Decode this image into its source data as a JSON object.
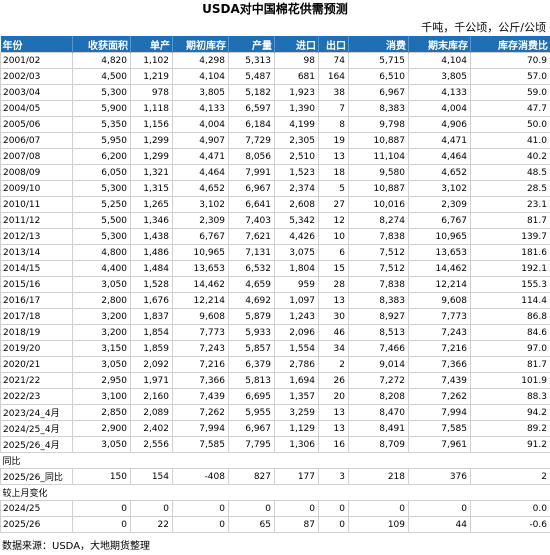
{
  "title": "USDA对中国棉花供需预测",
  "unit": "千吨，千公顷，公斤/公顷",
  "headers": [
    "年份",
    "收获面积",
    "单产",
    "期初库存",
    "产量",
    "进口",
    "出口",
    "消费",
    "期末库存",
    "库存消费比"
  ],
  "rows": [
    [
      "2001/02",
      "4,820",
      "1,102",
      "4,298",
      "5,313",
      "98",
      "74",
      "5,715",
      "4,104",
      "70.9"
    ],
    [
      "2002/03",
      "4,500",
      "1,219",
      "4,104",
      "5,487",
      "681",
      "164",
      "6,510",
      "3,805",
      "57.0"
    ],
    [
      "2003/04",
      "5,300",
      "978",
      "3,805",
      "5,182",
      "1,923",
      "38",
      "6,967",
      "4,133",
      "59.0"
    ],
    [
      "2004/05",
      "5,900",
      "1,118",
      "4,133",
      "6,597",
      "1,390",
      "7",
      "8,383",
      "4,004",
      "47.7"
    ],
    [
      "2005/06",
      "5,350",
      "1,156",
      "4,004",
      "6,184",
      "4,199",
      "8",
      "9,798",
      "4,906",
      "50.0"
    ],
    [
      "2006/07",
      "5,950",
      "1,299",
      "4,907",
      "7,729",
      "2,305",
      "19",
      "10,887",
      "4,471",
      "41.0"
    ],
    [
      "2007/08",
      "6,200",
      "1,299",
      "4,471",
      "8,056",
      "2,510",
      "13",
      "11,104",
      "4,464",
      "40.2"
    ],
    [
      "2008/09",
      "6,050",
      "1,321",
      "4,464",
      "7,991",
      "1,523",
      "18",
      "9,580",
      "4,652",
      "48.5"
    ],
    [
      "2009/10",
      "5,300",
      "1,315",
      "4,652",
      "6,967",
      "2,374",
      "5",
      "10,887",
      "3,102",
      "28.5"
    ],
    [
      "2010/11",
      "5,250",
      "1,265",
      "3,102",
      "6,641",
      "2,608",
      "27",
      "10,016",
      "2,309",
      "23.1"
    ],
    [
      "2011/12",
      "5,500",
      "1,346",
      "2,309",
      "7,403",
      "5,342",
      "12",
      "8,274",
      "6,767",
      "81.7"
    ],
    [
      "2012/13",
      "5,300",
      "1,438",
      "6,767",
      "7,621",
      "4,426",
      "10",
      "7,838",
      "10,965",
      "139.7"
    ],
    [
      "2013/14",
      "4,800",
      "1,486",
      "10,965",
      "7,131",
      "3,075",
      "6",
      "7,512",
      "13,653",
      "181.6"
    ],
    [
      "2014/15",
      "4,400",
      "1,484",
      "13,653",
      "6,532",
      "1,804",
      "15",
      "7,512",
      "14,462",
      "192.1"
    ],
    [
      "2015/16",
      "3,050",
      "1,528",
      "14,462",
      "4,659",
      "959",
      "28",
      "7,838",
      "12,214",
      "155.3"
    ],
    [
      "2016/17",
      "2,800",
      "1,676",
      "12,214",
      "4,692",
      "1,097",
      "13",
      "8,383",
      "9,608",
      "114.4"
    ],
    [
      "2017/18",
      "3,200",
      "1,837",
      "9,608",
      "5,879",
      "1,243",
      "30",
      "8,927",
      "7,773",
      "86.8"
    ],
    [
      "2018/19",
      "3,200",
      "1,854",
      "7,773",
      "5,933",
      "2,096",
      "46",
      "8,513",
      "7,243",
      "84.6"
    ],
    [
      "2019/20",
      "3,150",
      "1,859",
      "7,243",
      "5,857",
      "1,554",
      "34",
      "7,466",
      "7,216",
      "97.0"
    ],
    [
      "2020/21",
      "3,050",
      "2,092",
      "7,216",
      "6,379",
      "2,786",
      "2",
      "9,014",
      "7,366",
      "81.7"
    ],
    [
      "2021/22",
      "2,950",
      "1,971",
      "7,366",
      "5,813",
      "1,694",
      "26",
      "7,272",
      "7,439",
      "101.9"
    ],
    [
      "2022/23",
      "3,100",
      "2,160",
      "7,439",
      "6,695",
      "1,357",
      "20",
      "8,208",
      "7,262",
      "88.3"
    ],
    [
      "2023/24_4月",
      "2,850",
      "2,089",
      "7,262",
      "5,955",
      "3,259",
      "13",
      "8,470",
      "7,994",
      "94.2"
    ],
    [
      "2024/25_4月",
      "2,900",
      "2,402",
      "7,994",
      "6,967",
      "1,129",
      "13",
      "8,491",
      "7,585",
      "89.2"
    ],
    [
      "2025/26_4月",
      "3,050",
      "2,556",
      "7,585",
      "7,795",
      "1,306",
      "16",
      "8,709",
      "7,961",
      "91.2"
    ]
  ],
  "yoy_label": "同比",
  "yoy_rows": [
    [
      "2025/26_同比",
      "150",
      "154",
      "-408",
      "827",
      "177",
      "3",
      "218",
      "376",
      "2"
    ]
  ],
  "mom_label": "较上月变化",
  "mom_rows": [
    [
      "2024/25",
      "0",
      "0",
      "0",
      "0",
      "0",
      "0",
      "0",
      "0",
      "0.0"
    ],
    [
      "2025/26",
      "0",
      "22",
      "0",
      "65",
      "87",
      "0",
      "109",
      "44",
      "-0.6"
    ]
  ],
  "source": "数据来源：USDA，大地期货整理"
}
